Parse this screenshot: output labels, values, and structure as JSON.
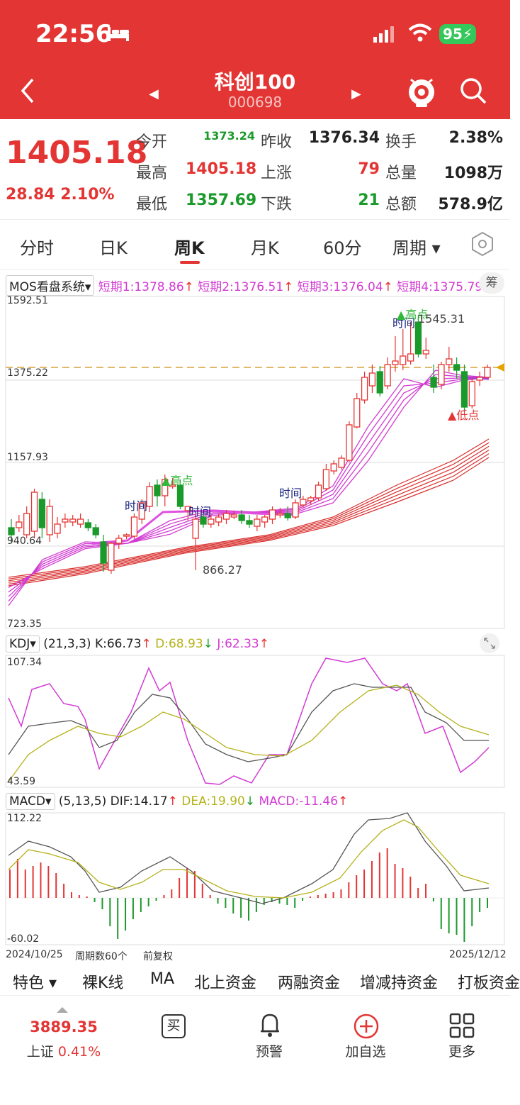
{
  "status": {
    "time": "22:56",
    "battery": "95"
  },
  "header": {
    "title": "科创100",
    "code": "000698"
  },
  "quote": {
    "price": "1405.18",
    "change": "28.84 2.10%",
    "rows": [
      {
        "l1": "今开",
        "v1": "1373.24",
        "l2": "昨收",
        "v2": "1376.34",
        "l3": "换手",
        "v3": "2.38%"
      },
      {
        "l1": "最高",
        "v1": "1405.18",
        "l2": "上涨",
        "v2": "79",
        "l3": "总量",
        "v3": "1098万"
      },
      {
        "l1": "最低",
        "v1": "1357.69",
        "l2": "下跌",
        "v2": "21",
        "l3": "总额",
        "v3": "578.9亿"
      }
    ]
  },
  "tabs": [
    "分时",
    "日K",
    "周K",
    "月K",
    "60分",
    "周期"
  ],
  "main_chart": {
    "system": "MOS看盘系统",
    "ma": [
      "短期1:1378.86",
      "短期2:1376.51",
      "短期3:1376.04",
      "短期4:1375.79"
    ],
    "side_btn": "筹",
    "y_labels": [
      "1592.51",
      "1375.22",
      "1157.93",
      "940.64",
      "723.35"
    ],
    "annotations": {
      "high1": "高点",
      "time1": "时间",
      "time2": "时间",
      "time3": "时间",
      "time4": "时间",
      "high2": "高点",
      "high2_val": "1545.31",
      "low_val": "866.27",
      "low2": "低点"
    }
  },
  "kdj": {
    "name": "KDJ",
    "params": "(21,3,3)",
    "k": "K:66.73",
    "d": "D:68.93",
    "j": "J:62.33",
    "top": "107.34",
    "bottom": "43.59"
  },
  "macd": {
    "name": "MACD",
    "params": "(5,13,5)",
    "dif": "DIF:14.17",
    "dea": "DEA:19.90",
    "macd": "MACD:-11.46",
    "top": "112.22",
    "bottom": "-60.02"
  },
  "footer_axis": {
    "start": "2024/10/25",
    "count": "周期数60个",
    "adj": "前复权",
    "end": "2025/12/12"
  },
  "bottom_tabs": [
    "特色",
    "裸K线",
    "MA",
    "北上资金",
    "两融资金",
    "增减持资金",
    "打板资金"
  ],
  "footer": {
    "index_val": "3889.35",
    "index_name": "上证",
    "index_chg": "0.41%",
    "buy": "买",
    "alert": "预警",
    "add": "加自选",
    "more": "更多"
  },
  "colors": {
    "up": "#e33533",
    "down": "#1a9a2a",
    "pink": "#d23bd2",
    "olive": "#b5b21a"
  }
}
